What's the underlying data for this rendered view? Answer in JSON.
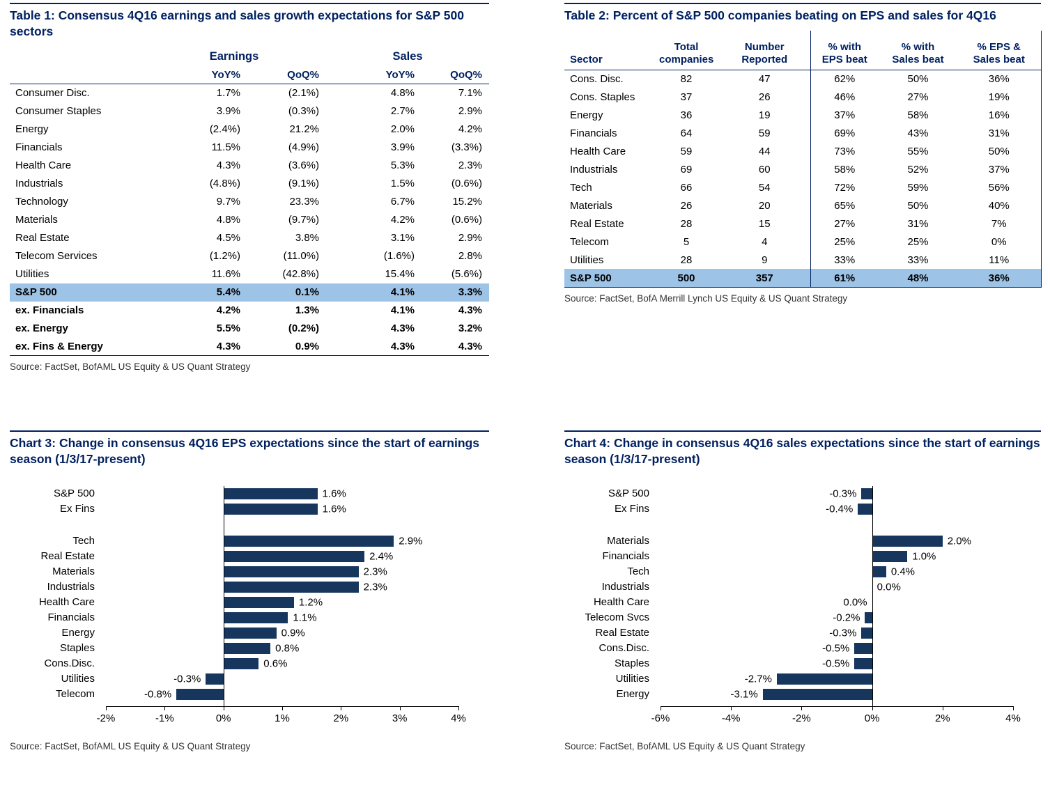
{
  "colors": {
    "navy": "#002060",
    "bar": "#17365d",
    "highlight": "#9dc3e6"
  },
  "chart_data": [
    {
      "type": "table",
      "title": "Table 1: Consensus 4Q16 earnings and sales growth expectations for S&P 500 sectors",
      "col_groups": [
        "Earnings",
        "Sales"
      ],
      "headers": [
        "",
        "YoY%",
        "QoQ%",
        "YoY%",
        "QoQ%"
      ],
      "rows": [
        {
          "label": "Consumer Disc.",
          "values": [
            "1.7%",
            "(2.1%)",
            "4.8%",
            "7.1%"
          ]
        },
        {
          "label": "Consumer Staples",
          "values": [
            "3.9%",
            "(0.3%)",
            "2.7%",
            "2.9%"
          ]
        },
        {
          "label": "Energy",
          "values": [
            "(2.4%)",
            "21.2%",
            "2.0%",
            "4.2%"
          ]
        },
        {
          "label": "Financials",
          "values": [
            "11.5%",
            "(4.9%)",
            "3.9%",
            "(3.3%)"
          ]
        },
        {
          "label": "Health Care",
          "values": [
            "4.3%",
            "(3.6%)",
            "5.3%",
            "2.3%"
          ]
        },
        {
          "label": "Industrials",
          "values": [
            "(4.8%)",
            "(9.1%)",
            "1.5%",
            "(0.6%)"
          ]
        },
        {
          "label": "Technology",
          "values": [
            "9.7%",
            "23.3%",
            "6.7%",
            "15.2%"
          ]
        },
        {
          "label": "Materials",
          "values": [
            "4.8%",
            "(9.7%)",
            "4.2%",
            "(0.6%)"
          ]
        },
        {
          "label": "Real Estate",
          "values": [
            "4.5%",
            "3.8%",
            "3.1%",
            "2.9%"
          ]
        },
        {
          "label": "Telecom Services",
          "values": [
            "(1.2%)",
            "(11.0%)",
            "(1.6%)",
            "2.8%"
          ]
        },
        {
          "label": "Utilities",
          "values": [
            "11.6%",
            "(42.8%)",
            "15.4%",
            "(5.6%)"
          ]
        },
        {
          "label": "S&P 500",
          "values": [
            "5.4%",
            "0.1%",
            "4.1%",
            "3.3%"
          ],
          "bold": true,
          "highlight": true
        },
        {
          "label": "ex. Financials",
          "values": [
            "4.2%",
            "1.3%",
            "4.1%",
            "4.3%"
          ],
          "bold": true
        },
        {
          "label": "ex. Energy",
          "values": [
            "5.5%",
            "(0.2%)",
            "4.3%",
            "3.2%"
          ],
          "bold": true
        },
        {
          "label": "ex. Fins & Energy",
          "values": [
            "4.3%",
            "0.9%",
            "4.3%",
            "4.3%"
          ],
          "bold": true
        }
      ],
      "source": "Source: FactSet, BofAML US Equity & US Quant Strategy"
    },
    {
      "type": "table",
      "title": "Table 2: Percent of S&P 500 companies beating on EPS and sales for 4Q16",
      "headers": [
        [
          "Sector"
        ],
        [
          "Total",
          "companies"
        ],
        [
          "Number",
          "Reported"
        ],
        [
          "% with",
          "EPS beat"
        ],
        [
          "% with",
          "Sales beat"
        ],
        [
          "% EPS &",
          "Sales beat"
        ]
      ],
      "rows": [
        {
          "label": "Cons. Disc.",
          "values": [
            "82",
            "47",
            "62%",
            "50%",
            "36%"
          ]
        },
        {
          "label": "Cons. Staples",
          "values": [
            "37",
            "26",
            "46%",
            "27%",
            "19%"
          ]
        },
        {
          "label": "Energy",
          "values": [
            "36",
            "19",
            "37%",
            "58%",
            "16%"
          ]
        },
        {
          "label": "Financials",
          "values": [
            "64",
            "59",
            "69%",
            "43%",
            "31%"
          ]
        },
        {
          "label": "Health Care",
          "values": [
            "59",
            "44",
            "73%",
            "55%",
            "50%"
          ]
        },
        {
          "label": "Industrials",
          "values": [
            "69",
            "60",
            "58%",
            "52%",
            "37%"
          ]
        },
        {
          "label": "Tech",
          "values": [
            "66",
            "54",
            "72%",
            "59%",
            "56%"
          ]
        },
        {
          "label": "Materials",
          "values": [
            "26",
            "20",
            "65%",
            "50%",
            "40%"
          ]
        },
        {
          "label": "Real Estate",
          "values": [
            "28",
            "15",
            "27%",
            "31%",
            "7%"
          ]
        },
        {
          "label": "Telecom",
          "values": [
            "5",
            "4",
            "25%",
            "25%",
            "0%"
          ]
        },
        {
          "label": "Utilities",
          "values": [
            "28",
            "9",
            "33%",
            "33%",
            "11%"
          ]
        },
        {
          "label": "S&P 500",
          "values": [
            "500",
            "357",
            "61%",
            "48%",
            "36%"
          ],
          "bold": true,
          "highlight": true
        }
      ],
      "source": "Source: FactSet, BofA Merrill Lynch US Equity & US Quant Strategy"
    },
    {
      "type": "bar",
      "orientation": "horizontal",
      "title": "Chart 3: Change in consensus 4Q16 EPS expectations since the start of earnings season (1/3/17-present)",
      "categories": [
        "S&P 500",
        "Ex Fins",
        "",
        "Tech",
        "Real Estate",
        "Materials",
        "Industrials",
        "Health Care",
        "Financials",
        "Energy",
        "Staples",
        "Cons.Disc.",
        "Utilities",
        "Telecom"
      ],
      "values": [
        1.6,
        1.6,
        null,
        2.9,
        2.4,
        2.3,
        2.3,
        1.2,
        1.1,
        0.9,
        0.8,
        0.6,
        -0.3,
        -0.8
      ],
      "value_labels": [
        "1.6%",
        "1.6%",
        "",
        "2.9%",
        "2.4%",
        "2.3%",
        "2.3%",
        "1.2%",
        "1.1%",
        "0.9%",
        "0.8%",
        "0.6%",
        "-0.3%",
        "-0.8%"
      ],
      "xlim": [
        -2,
        4
      ],
      "xtick_values": [
        -2,
        -1,
        0,
        1,
        2,
        3,
        4
      ],
      "xticks": [
        "-2%",
        "-1%",
        "0%",
        "1%",
        "2%",
        "3%",
        "4%"
      ],
      "bar_color": "#17365d",
      "source": "Source: FactSet, BofAML US Equity & US Quant Strategy"
    },
    {
      "type": "bar",
      "orientation": "horizontal",
      "title": "Chart 4: Change in consensus 4Q16 sales expectations since the start of earnings season (1/3/17-present)",
      "categories": [
        "S&P 500",
        "Ex Fins",
        "",
        "Materials",
        "Financials",
        "Tech",
        "Industrials",
        "Health Care",
        "Telecom Svcs",
        "Real Estate",
        "Cons.Disc.",
        "Staples",
        "Utilities",
        "Energy"
      ],
      "values": [
        -0.3,
        -0.4,
        null,
        2.0,
        1.0,
        0.4,
        0.0,
        0.0,
        -0.2,
        -0.3,
        -0.5,
        -0.5,
        -2.7,
        -3.1
      ],
      "value_labels": [
        "-0.3%",
        "-0.4%",
        "",
        "2.0%",
        "1.0%",
        "0.4%",
        "0.0%",
        "0.0%",
        "-0.2%",
        "-0.3%",
        "-0.5%",
        "-0.5%",
        "-2.7%",
        "-3.1%"
      ],
      "label_sides": [
        null,
        null,
        null,
        null,
        null,
        null,
        "right",
        "left",
        null,
        null,
        null,
        null,
        null,
        null
      ],
      "xlim": [
        -6,
        4
      ],
      "xtick_values": [
        -6,
        -4,
        -2,
        0,
        2,
        4
      ],
      "xticks": [
        "-6%",
        "-4%",
        "-2%",
        "0%",
        "2%",
        "4%"
      ],
      "bar_color": "#17365d",
      "source": "Source: FactSet, BofAML US Equity & US Quant Strategy"
    }
  ]
}
